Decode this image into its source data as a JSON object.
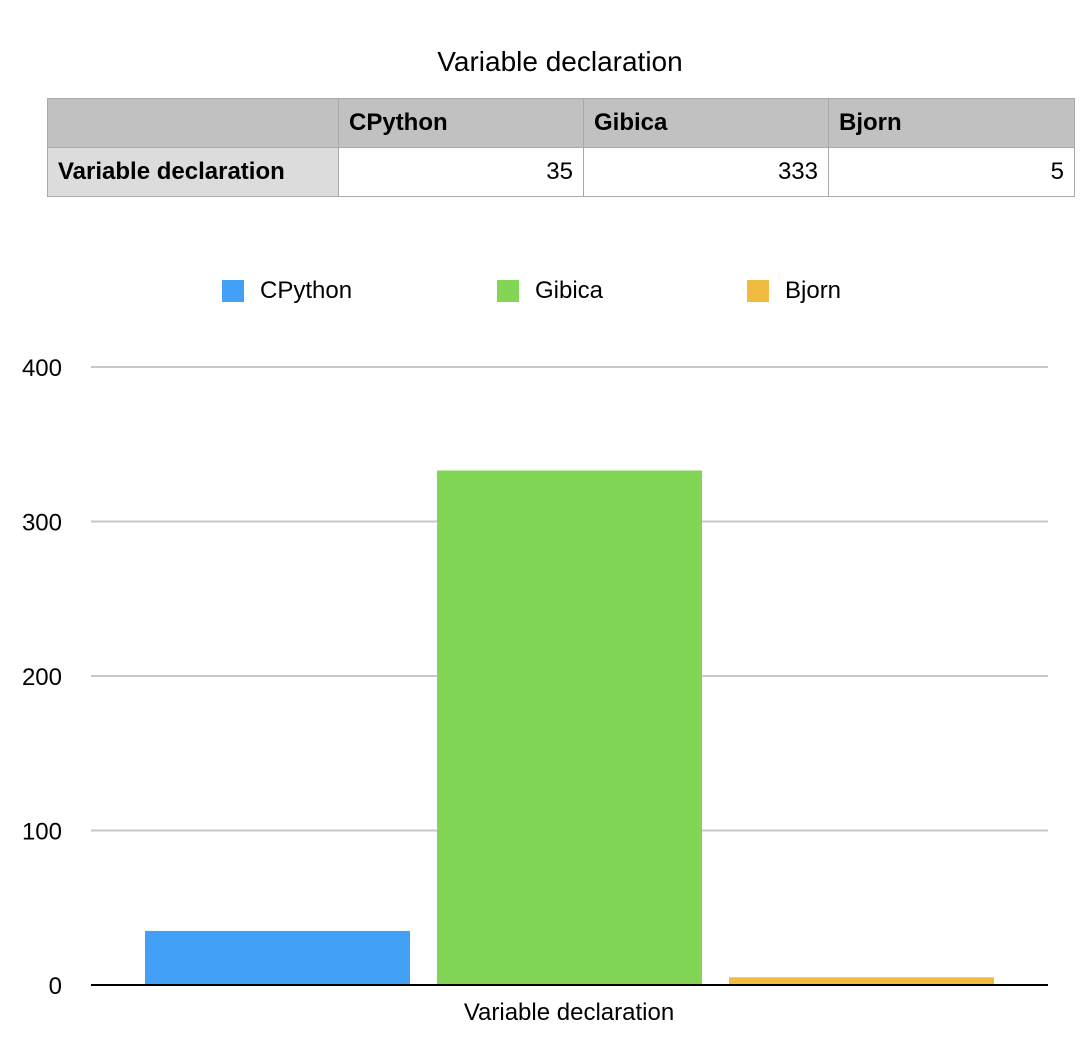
{
  "title": "Variable declaration",
  "table": {
    "corner": "",
    "columns": [
      "CPython",
      "Gibica",
      "Bjorn"
    ],
    "rows": [
      {
        "label": "Variable declaration",
        "values": [
          "35",
          "333",
          "5"
        ]
      }
    ]
  },
  "colors": {
    "CPython": "#42a1f7",
    "Gibica": "#83d556",
    "Bjorn": "#f0bc40",
    "grid": "#c8c8c8",
    "axis": "#000000"
  },
  "chart_data": {
    "type": "bar",
    "title": "Variable declaration",
    "categories": [
      "Variable declaration"
    ],
    "series": [
      {
        "name": "CPython",
        "values": [
          35
        ]
      },
      {
        "name": "Gibica",
        "values": [
          333
        ]
      },
      {
        "name": "Bjorn",
        "values": [
          5
        ]
      }
    ],
    "xlabel": "",
    "ylabel": "",
    "ylim": [
      0,
      400
    ],
    "yticks": [
      0,
      100,
      200,
      300,
      400
    ],
    "grid": true,
    "legend": "top"
  }
}
